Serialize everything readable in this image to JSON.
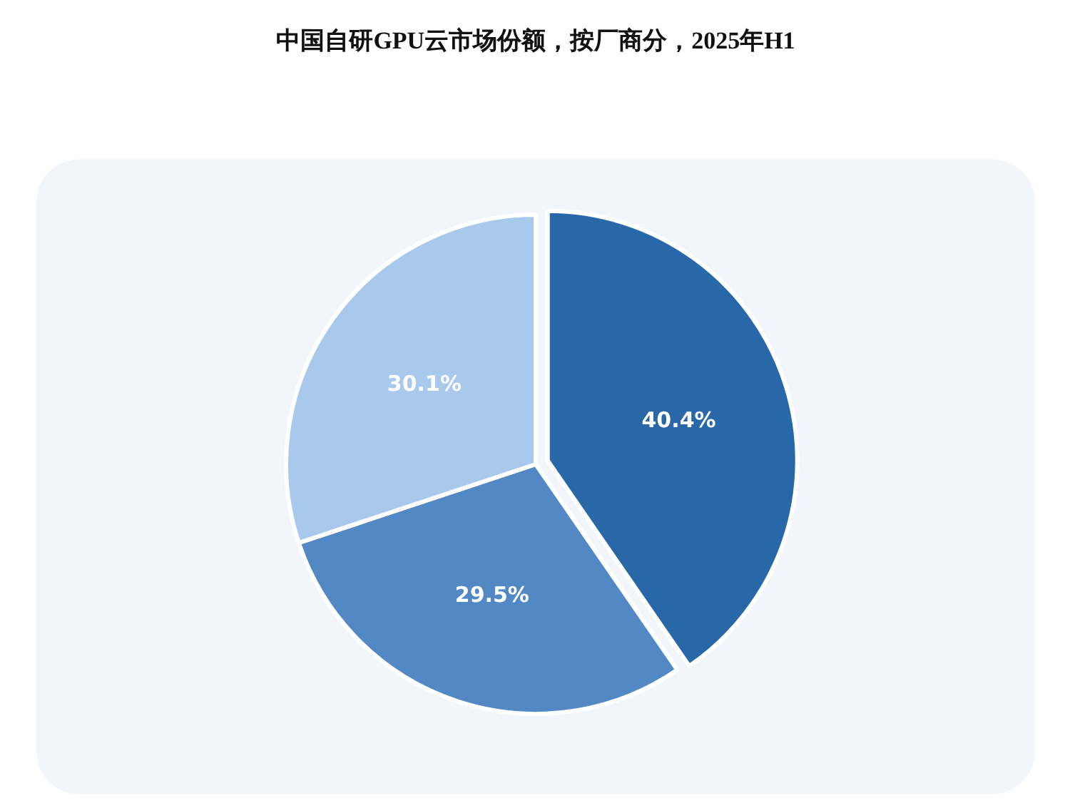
{
  "chart_data": {
    "type": "pie",
    "title": "中国自研GPU云市场份额，按厂商分，2025年H1",
    "categories": [
      null,
      null,
      null
    ],
    "values": [
      40.4,
      29.5,
      30.1
    ],
    "colors": [
      "#2868a8",
      "#5289c4",
      "#a8c8ec"
    ],
    "value_labels": [
      "40.4%",
      "29.5%",
      "30.1%"
    ]
  }
}
